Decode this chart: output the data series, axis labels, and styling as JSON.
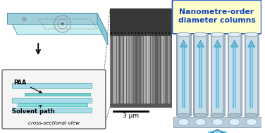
{
  "bg_color": "#ffffff",
  "title_box_text": "Nanometre-order\ndiameter columns",
  "title_box_bg": "#ffffcc",
  "title_box_border": "#2255cc",
  "title_text_color": "#1144bb",
  "chip_face_color": "#c8eef0",
  "chip_edge_color": "#5599aa",
  "chip_side_color": "#9fcfda",
  "paa_label": "PAA",
  "solvent_label": "Solvent path",
  "cross_label": "cross-sectional view",
  "scale_bar_label": "3 μm",
  "cs_bg": "#f5f5f5",
  "cs_border": "#555555",
  "cs_glass_color": "#aadde8",
  "cs_glass_edge": "#44aaaa",
  "cs_paa_color": "#77cccc",
  "cs_paa_edge": "#33aaaa",
  "cs_channel_color": "#88dddd",
  "cs_channel_edge": "#33bbbb",
  "sem_bg": "#404040",
  "col_body_color": "#c8dde8",
  "col_edge_color": "#8899aa",
  "col_shadow_color": "#8899aa",
  "plate_color": "#b8ccd8",
  "plate_edge": "#8899aa",
  "arrow_small_color": "#66bbdd",
  "arrow_small_outline": "#3388aa",
  "arrow_big_color_light": "#88ddff",
  "arrow_big_color_dark": "#44aacc"
}
